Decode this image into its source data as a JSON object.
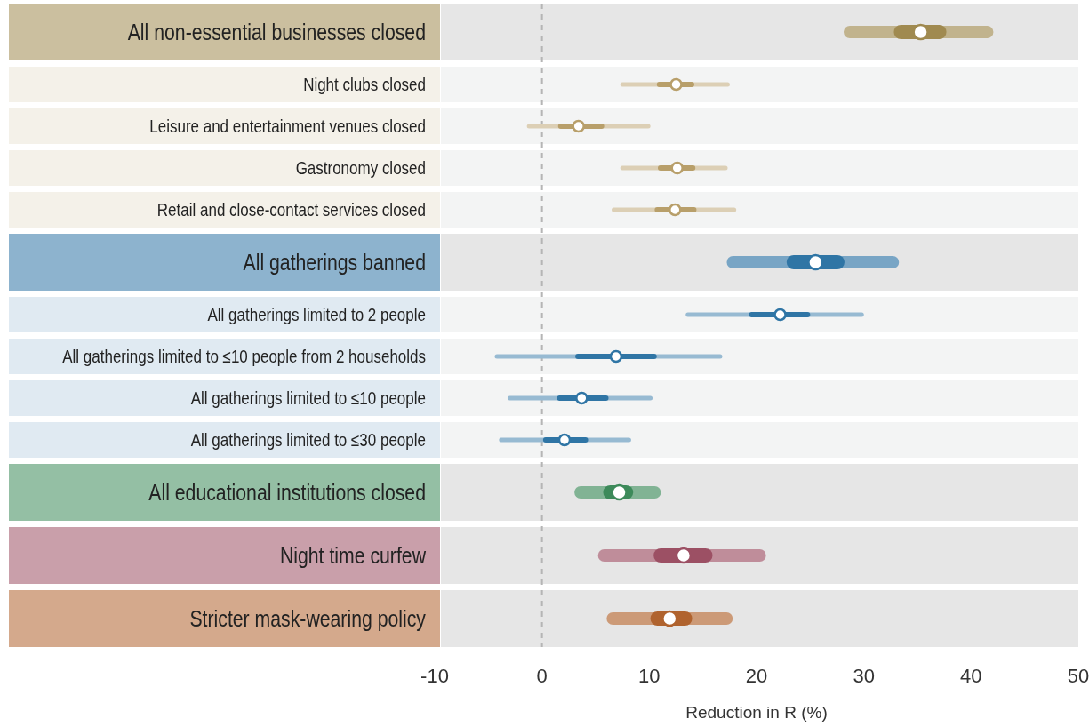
{
  "chart_data": {
    "type": "box",
    "orientation": "horizontal",
    "xlabel": "Reduction in R (%)",
    "xlim": [
      -10,
      50
    ],
    "xticks": [
      -10,
      0,
      10,
      20,
      30,
      40,
      50
    ],
    "grid": false,
    "marker": "circle",
    "ref_lines": [
      {
        "axis": "x",
        "value": 0,
        "color": "#b5b5b5",
        "line_style": "dashed"
      }
    ],
    "categories": [
      "All non-essential businesses closed",
      "Night clubs closed",
      "Leisure and entertainment venues closed",
      "Gastronomy closed",
      "Retail and close-contact services closed",
      "All gatherings banned",
      "All gatherings limited to 2 people",
      "All gatherings limited to ≤10 people from 2 households",
      "All gatherings limited to ≤10 people",
      "All gatherings limited to ≤30 people",
      "All educational institutions closed",
      "Night time curfew",
      "Stricter mask-wearing policy"
    ],
    "series": [
      {
        "colors": [
          "#a08a50",
          null,
          null,
          null,
          null,
          "#2f75a5",
          null,
          null,
          null,
          null,
          "#3d8a5a",
          "#9c5064",
          "#b0632e"
        ],
        "boxes": [
          {
            "low": 28.7,
            "q1": 32.8,
            "median": 35.3,
            "q3": 37.7,
            "high": 41.5
          },
          null,
          null,
          null,
          null,
          {
            "low": 17.8,
            "q1": 22.8,
            "median": 25.5,
            "q3": 28.2,
            "high": 32.7
          },
          null,
          null,
          null,
          null,
          {
            "low": 3.6,
            "q1": 5.7,
            "median": 7.2,
            "q3": 8.5,
            "high": 10.5
          },
          {
            "low": 5.8,
            "q1": 10.4,
            "median": 13.2,
            "q3": 15.9,
            "high": 20.3
          },
          {
            "low": 6.6,
            "q1": 10.1,
            "median": 11.9,
            "q3": 14,
            "high": 17.2
          }
        ]
      },
      {
        "colors": [
          null,
          "#b89f6a",
          "#b89f6a",
          "#b89f6a",
          "#b89f6a",
          null,
          "#2f75a5",
          "#2f75a5",
          "#2f75a5",
          "#2f75a5",
          null,
          null,
          null
        ],
        "boxes": [
          null,
          {
            "low": 7.5,
            "q1": 10.7,
            "median": 12.5,
            "q3": 14.2,
            "high": 17.3
          },
          {
            "low": -1.2,
            "q1": 1.5,
            "median": 3.4,
            "q3": 5.8,
            "high": 9.9
          },
          {
            "low": 7.5,
            "q1": 10.8,
            "median": 12.6,
            "q3": 14.3,
            "high": 17.1
          },
          {
            "low": 6.7,
            "q1": 10.5,
            "median": 12.4,
            "q3": 14.4,
            "high": 17.9
          },
          null,
          {
            "low": 13.6,
            "q1": 19.3,
            "median": 22.2,
            "q3": 25,
            "high": 29.8
          },
          {
            "low": -4.2,
            "q1": 3.1,
            "median": 6.9,
            "q3": 10.7,
            "high": 16.6
          },
          {
            "low": -3,
            "q1": 1.4,
            "median": 3.7,
            "q3": 6.2,
            "high": 10.1
          },
          {
            "low": -3.8,
            "q1": 0.1,
            "median": 2.1,
            "q3": 4.3,
            "high": 8.1
          },
          null,
          null,
          null
        ]
      }
    ]
  }
}
